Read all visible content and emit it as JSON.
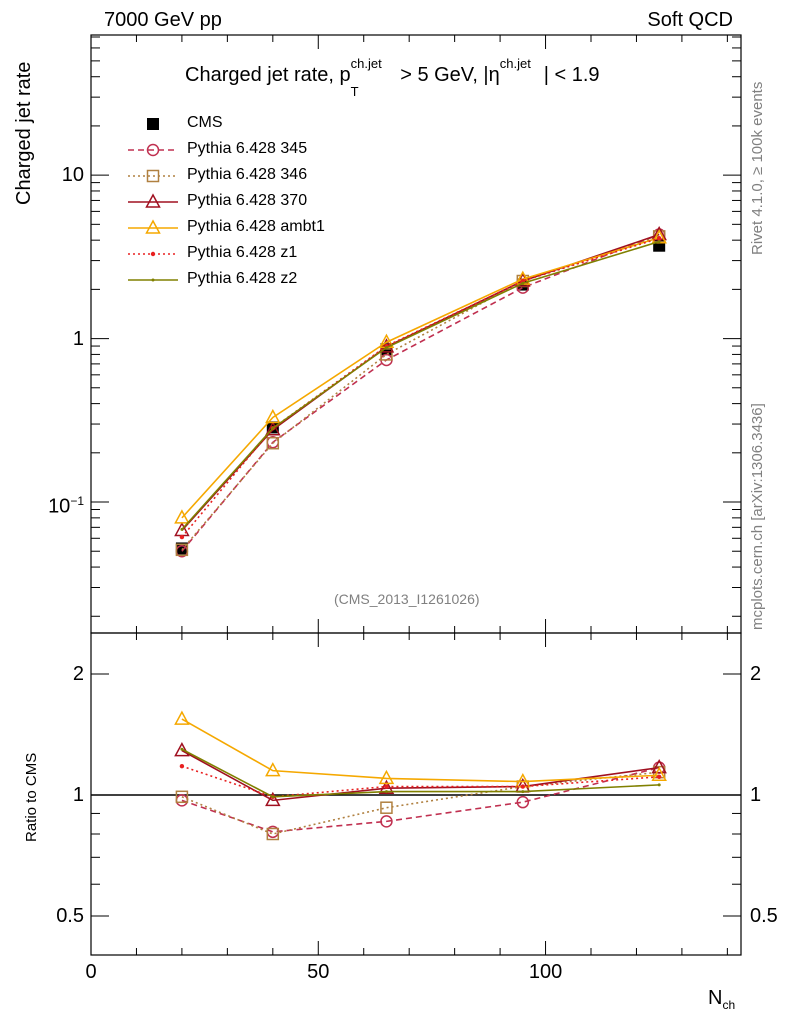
{
  "header": {
    "left": "7000 GeV pp",
    "right": "Soft QCD"
  },
  "side_text": {
    "rivet": "Rivet 4.1.0, ≥ 100k events",
    "mcplots": "mcplots.cern.ch [arXiv:1306.3436]"
  },
  "analysis_id": "(CMS_2013_I1261026)",
  "title": {
    "part1": "Charged jet rate, p",
    "sup1": "ch.jet",
    "sub1": "T",
    "part2": " > 5 GeV,  |η",
    "sup2": "ch.jet",
    "part3": "| < 1.9"
  },
  "chart_data": {
    "type": "line",
    "title": "Charged jet rate, p_T^ch.jet > 5 GeV, |η^ch.jet| < 1.9",
    "xlabel": "N",
    "xlabel_sub": "ch",
    "ylabel": "Charged jet rate",
    "ratio_ylabel": "Ratio to CMS",
    "xlim": [
      0,
      143
    ],
    "ylim": [
      0.0158,
      72
    ],
    "yscale": "log",
    "ratio_ylim": [
      0.4,
      2.53
    ],
    "ratio_yscale": "log",
    "x_ticks": [
      "0",
      "50",
      "100"
    ],
    "x_tick_values": [
      0,
      50,
      100
    ],
    "y_ticks": [
      {
        "v": 10,
        "label": "10"
      },
      {
        "v": 1,
        "label": "1"
      },
      {
        "v": 0.1,
        "label": "10",
        "sup": "−1"
      }
    ],
    "ratio_ticks": [
      {
        "v": 2,
        "label": "2"
      },
      {
        "v": 1,
        "label": "1"
      },
      {
        "v": 0.5,
        "label": "0.5"
      }
    ],
    "legend_position": "top-left",
    "x": [
      20,
      40,
      65,
      95,
      125
    ],
    "series": [
      {
        "name": "CMS",
        "color": "#000000",
        "marker": "filled-square",
        "line": "none",
        "values": [
          0.052,
          0.286,
          0.86,
          2.14,
          3.7
        ],
        "ratio": [
          1,
          1,
          1,
          1,
          1
        ]
      },
      {
        "name": "Pythia 6.428 345",
        "color": "#c03050",
        "marker": "open-circle",
        "line": "dashed",
        "values": [
          0.05,
          0.232,
          0.74,
          2.05,
          4.33
        ],
        "ratio": [
          0.97,
          0.81,
          0.86,
          0.96,
          1.17
        ]
      },
      {
        "name": "Pythia 6.428 346",
        "color": "#b08040",
        "marker": "open-square",
        "line": "dotted",
        "values": [
          0.051,
          0.229,
          0.8,
          2.25,
          4.22
        ],
        "ratio": [
          0.99,
          0.8,
          0.93,
          1.05,
          1.14
        ]
      },
      {
        "name": "Pythia 6.428 370",
        "color": "#a01020",
        "marker": "open-triangle",
        "line": "solid",
        "values": [
          0.067,
          0.277,
          0.89,
          2.25,
          4.33
        ],
        "ratio": [
          1.29,
          0.97,
          1.04,
          1.05,
          1.17
        ]
      },
      {
        "name": "Pythia 6.428 ambt1",
        "color": "#f5a800",
        "marker": "open-triangle",
        "line": "solid",
        "values": [
          0.08,
          0.329,
          0.95,
          2.31,
          4.14
        ],
        "ratio": [
          1.545,
          1.15,
          1.1,
          1.08,
          1.12
        ]
      },
      {
        "name": "Pythia 6.428 z1",
        "color": "#e82020",
        "marker": "dot",
        "line": "dotted",
        "values": [
          0.061,
          0.283,
          0.9,
          2.25,
          4.11
        ],
        "ratio": [
          1.18,
          0.99,
          1.05,
          1.05,
          1.11
        ]
      },
      {
        "name": "Pythia 6.428 z2",
        "color": "#808000",
        "marker": "small-dot",
        "line": "solid",
        "values": [
          0.068,
          0.283,
          0.88,
          2.18,
          3.92
        ],
        "ratio": [
          1.3,
          0.99,
          1.02,
          1.02,
          1.06
        ]
      }
    ]
  }
}
